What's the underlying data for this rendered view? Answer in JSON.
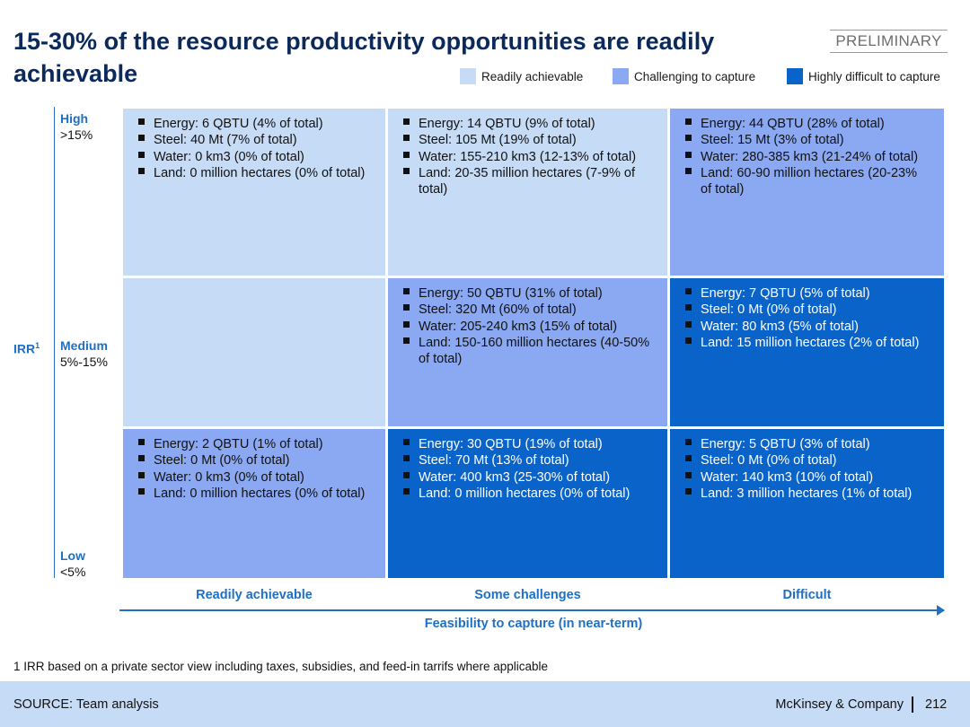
{
  "title": "15-30% of the resource productivity opportunities are readily achievable",
  "badge": "PRELIMINARY",
  "legend": [
    {
      "label": "Readily achievable",
      "color": "#c6dcf6"
    },
    {
      "label": "Challenging to capture",
      "color": "#8ba9f2"
    },
    {
      "label": "Highly difficult to capture",
      "color": "#0a63c9"
    }
  ],
  "y_axis": {
    "label": "IRR",
    "label_sup": "1",
    "levels": [
      {
        "name": "High",
        "range": ">15%"
      },
      {
        "name": "Medium",
        "range": "5%-15%"
      },
      {
        "name": "Low",
        "range": "<5%"
      }
    ]
  },
  "x_axis": {
    "title": "Feasibility to capture (in near-term)",
    "columns": [
      "Readily achievable",
      "Some challenges",
      "Difficult"
    ]
  },
  "cells": {
    "high_ready": [
      "Energy: 6 QBTU (4% of total)",
      "Steel: 40 Mt (7% of total)",
      "Water: 0 km3 (0% of total)",
      "Land: 0 million hectares (0% of total)"
    ],
    "high_some": [
      "Energy: 14 QBTU (9% of total)",
      "Steel: 105 Mt (19% of total)",
      "Water: 155-210 km3 (12-13% of total)",
      "Land: 20-35 million hectares (7-9% of total)"
    ],
    "high_difficult": [
      "Energy: 44 QBTU (28% of total)",
      "Steel: 15 Mt (3% of total)",
      "Water: 280-385 km3 (21-24% of total)",
      "Land: 60-90 million hectares (20-23% of total)"
    ],
    "medium_ready": [],
    "medium_some": [
      "Energy: 50 QBTU (31% of total)",
      "Steel: 320 Mt (60% of total)",
      "Water: 205-240 km3 (15% of total)",
      "Land: 150-160 million hectares (40-50% of total)"
    ],
    "medium_difficult": [
      "Energy: 7 QBTU (5% of total)",
      "Steel: 0 Mt (0% of total)",
      "Water: 80 km3 (5% of total)",
      "Land: 15 million hectares (2% of total)"
    ],
    "low_ready": [
      "Energy: 2 QBTU (1% of total)",
      "Steel: 0 Mt (0% of total)",
      "Water: 0 km3 (0% of total)",
      "Land: 0 million hectares (0% of total)"
    ],
    "low_some": [
      "Energy: 30 QBTU (19% of total)",
      "Steel: 70 Mt (13% of total)",
      "Water: 400 km3 (25-30% of total)",
      "Land: 0 million hectares (0% of total)"
    ],
    "low_difficult": [
      "Energy: 5 QBTU (3% of total)",
      "Steel: 0 Mt (0% of total)",
      "Water: 140 km3 (10% of total)",
      "Land: 3 million hectares (1% of total)"
    ]
  },
  "footnote": "1 IRR based on a private sector view including taxes, subsidies, and feed-in tarrifs where applicable",
  "footer": {
    "source": "SOURCE: Team analysis",
    "brand": "McKinsey & Company",
    "page": "212"
  }
}
